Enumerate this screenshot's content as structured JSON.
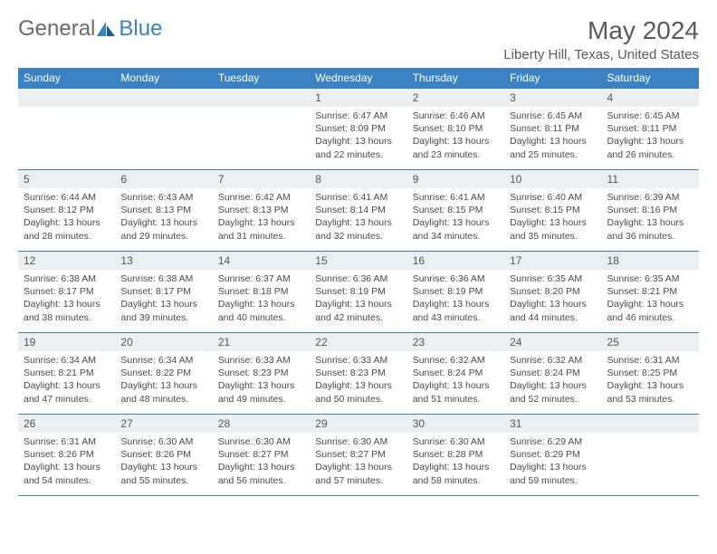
{
  "brand": {
    "text1": "General",
    "text2": "Blue"
  },
  "title": "May 2024",
  "location": "Liberty Hill, Texas, United States",
  "colors": {
    "primary": "#3b82c4",
    "header_bg": "#eceff1",
    "text": "#4a4a4a",
    "background": "#ffffff"
  },
  "typography": {
    "title_fontsize": 28,
    "location_fontsize": 15,
    "dayheader_fontsize": 12,
    "daynum_fontsize": 12,
    "body_fontsize": 10.5
  },
  "day_headers": [
    "Sunday",
    "Monday",
    "Tuesday",
    "Wednesday",
    "Thursday",
    "Friday",
    "Saturday"
  ],
  "weeks": [
    [
      {
        "day": "",
        "sunrise": "",
        "sunset": "",
        "daylight": ""
      },
      {
        "day": "",
        "sunrise": "",
        "sunset": "",
        "daylight": ""
      },
      {
        "day": "",
        "sunrise": "",
        "sunset": "",
        "daylight": ""
      },
      {
        "day": "1",
        "sunrise": "6:47 AM",
        "sunset": "8:09 PM",
        "daylight": "13 hours and 22 minutes."
      },
      {
        "day": "2",
        "sunrise": "6:46 AM",
        "sunset": "8:10 PM",
        "daylight": "13 hours and 23 minutes."
      },
      {
        "day": "3",
        "sunrise": "6:45 AM",
        "sunset": "8:11 PM",
        "daylight": "13 hours and 25 minutes."
      },
      {
        "day": "4",
        "sunrise": "6:45 AM",
        "sunset": "8:11 PM",
        "daylight": "13 hours and 26 minutes."
      }
    ],
    [
      {
        "day": "5",
        "sunrise": "6:44 AM",
        "sunset": "8:12 PM",
        "daylight": "13 hours and 28 minutes."
      },
      {
        "day": "6",
        "sunrise": "6:43 AM",
        "sunset": "8:13 PM",
        "daylight": "13 hours and 29 minutes."
      },
      {
        "day": "7",
        "sunrise": "6:42 AM",
        "sunset": "8:13 PM",
        "daylight": "13 hours and 31 minutes."
      },
      {
        "day": "8",
        "sunrise": "6:41 AM",
        "sunset": "8:14 PM",
        "daylight": "13 hours and 32 minutes."
      },
      {
        "day": "9",
        "sunrise": "6:41 AM",
        "sunset": "8:15 PM",
        "daylight": "13 hours and 34 minutes."
      },
      {
        "day": "10",
        "sunrise": "6:40 AM",
        "sunset": "8:15 PM",
        "daylight": "13 hours and 35 minutes."
      },
      {
        "day": "11",
        "sunrise": "6:39 AM",
        "sunset": "8:16 PM",
        "daylight": "13 hours and 36 minutes."
      }
    ],
    [
      {
        "day": "12",
        "sunrise": "6:38 AM",
        "sunset": "8:17 PM",
        "daylight": "13 hours and 38 minutes."
      },
      {
        "day": "13",
        "sunrise": "6:38 AM",
        "sunset": "8:17 PM",
        "daylight": "13 hours and 39 minutes."
      },
      {
        "day": "14",
        "sunrise": "6:37 AM",
        "sunset": "8:18 PM",
        "daylight": "13 hours and 40 minutes."
      },
      {
        "day": "15",
        "sunrise": "6:36 AM",
        "sunset": "8:19 PM",
        "daylight": "13 hours and 42 minutes."
      },
      {
        "day": "16",
        "sunrise": "6:36 AM",
        "sunset": "8:19 PM",
        "daylight": "13 hours and 43 minutes."
      },
      {
        "day": "17",
        "sunrise": "6:35 AM",
        "sunset": "8:20 PM",
        "daylight": "13 hours and 44 minutes."
      },
      {
        "day": "18",
        "sunrise": "6:35 AM",
        "sunset": "8:21 PM",
        "daylight": "13 hours and 46 minutes."
      }
    ],
    [
      {
        "day": "19",
        "sunrise": "6:34 AM",
        "sunset": "8:21 PM",
        "daylight": "13 hours and 47 minutes."
      },
      {
        "day": "20",
        "sunrise": "6:34 AM",
        "sunset": "8:22 PM",
        "daylight": "13 hours and 48 minutes."
      },
      {
        "day": "21",
        "sunrise": "6:33 AM",
        "sunset": "8:23 PM",
        "daylight": "13 hours and 49 minutes."
      },
      {
        "day": "22",
        "sunrise": "6:33 AM",
        "sunset": "8:23 PM",
        "daylight": "13 hours and 50 minutes."
      },
      {
        "day": "23",
        "sunrise": "6:32 AM",
        "sunset": "8:24 PM",
        "daylight": "13 hours and 51 minutes."
      },
      {
        "day": "24",
        "sunrise": "6:32 AM",
        "sunset": "8:24 PM",
        "daylight": "13 hours and 52 minutes."
      },
      {
        "day": "25",
        "sunrise": "6:31 AM",
        "sunset": "8:25 PM",
        "daylight": "13 hours and 53 minutes."
      }
    ],
    [
      {
        "day": "26",
        "sunrise": "6:31 AM",
        "sunset": "8:26 PM",
        "daylight": "13 hours and 54 minutes."
      },
      {
        "day": "27",
        "sunrise": "6:30 AM",
        "sunset": "8:26 PM",
        "daylight": "13 hours and 55 minutes."
      },
      {
        "day": "28",
        "sunrise": "6:30 AM",
        "sunset": "8:27 PM",
        "daylight": "13 hours and 56 minutes."
      },
      {
        "day": "29",
        "sunrise": "6:30 AM",
        "sunset": "8:27 PM",
        "daylight": "13 hours and 57 minutes."
      },
      {
        "day": "30",
        "sunrise": "6:30 AM",
        "sunset": "8:28 PM",
        "daylight": "13 hours and 58 minutes."
      },
      {
        "day": "31",
        "sunrise": "6:29 AM",
        "sunset": "8:29 PM",
        "daylight": "13 hours and 59 minutes."
      },
      {
        "day": "",
        "sunrise": "",
        "sunset": "",
        "daylight": ""
      }
    ]
  ],
  "labels": {
    "sunrise": "Sunrise: ",
    "sunset": "Sunset: ",
    "daylight": "Daylight: "
  }
}
